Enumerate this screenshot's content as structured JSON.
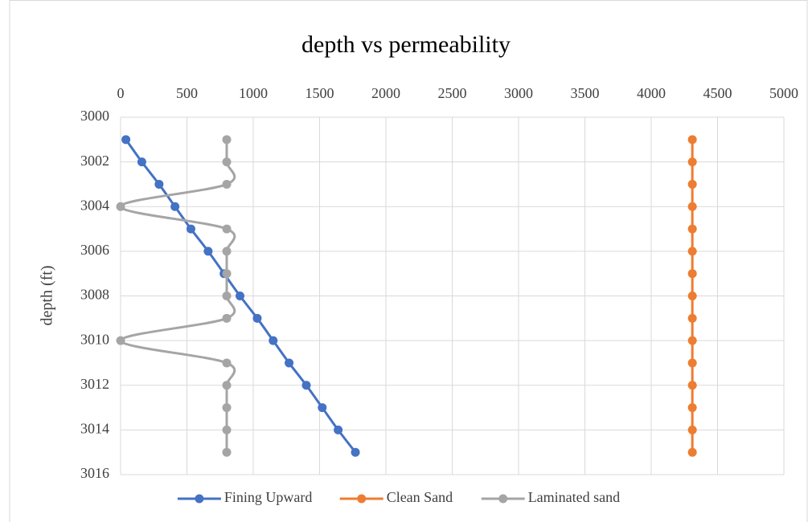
{
  "chart_data": {
    "type": "scatter",
    "title": "depth vs permeability",
    "y_label": "depth (ft)",
    "y": [
      3001,
      3002,
      3003,
      3004,
      3005,
      3006,
      3007,
      3008,
      3009,
      3010,
      3011,
      3012,
      3013,
      3014,
      3015
    ],
    "series": [
      {
        "name": "Fining Upward",
        "color": "#4472c4",
        "values": [
          40,
          160,
          290,
          410,
          530,
          660,
          780,
          900,
          1030,
          1150,
          1270,
          1400,
          1520,
          1640,
          1770
        ]
      },
      {
        "name": "Clean Sand",
        "color": "#ed7d31",
        "values": [
          4310,
          4310,
          4310,
          4310,
          4310,
          4310,
          4310,
          4310,
          4310,
          4310,
          4310,
          4310,
          4310,
          4310,
          4310
        ]
      },
      {
        "name": "Laminated sand",
        "color": "#a5a5a5",
        "values": [
          800,
          800,
          800,
          0,
          800,
          800,
          800,
          800,
          800,
          0,
          800,
          800,
          800,
          800,
          800
        ]
      }
    ],
    "xlim": [
      0,
      5000
    ],
    "xticks": [
      0,
      500,
      1000,
      1500,
      2000,
      2500,
      3000,
      3500,
      4000,
      4500,
      5000
    ],
    "ylim": [
      3000,
      3016
    ],
    "yticks": [
      3000,
      3002,
      3004,
      3006,
      3008,
      3010,
      3012,
      3014,
      3016
    ],
    "y_reversed": true,
    "x_axis_top": true,
    "grid": true,
    "smooth": true,
    "legend": "bottom"
  }
}
